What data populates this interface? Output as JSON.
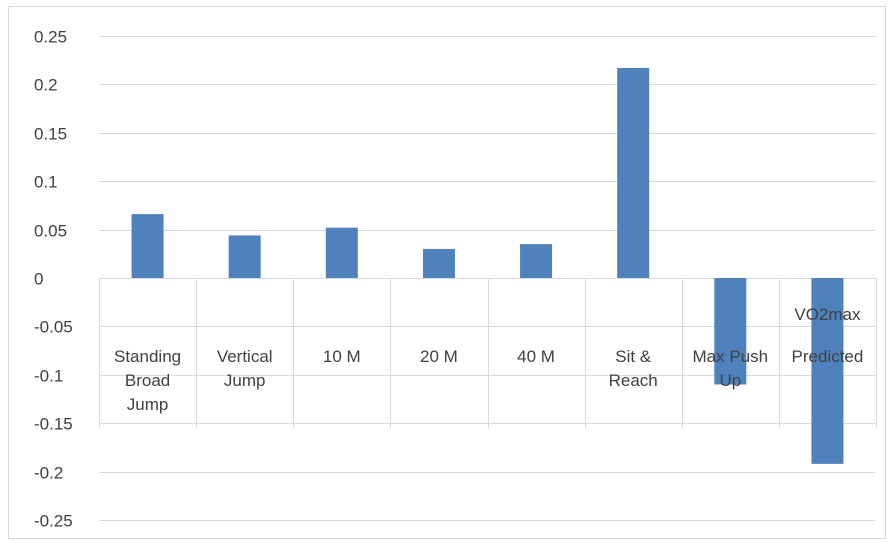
{
  "chart_data": {
    "type": "bar",
    "title": "",
    "xlabel": "",
    "ylabel": "",
    "categories": [
      [
        "Standing",
        "Broad",
        "Jump"
      ],
      [
        "Vertical",
        "Jump"
      ],
      [
        "10 M"
      ],
      [
        "20 M"
      ],
      [
        "40 M"
      ],
      [
        "Sit &",
        "Reach"
      ],
      [
        "Max Push",
        "Up"
      ],
      [
        "VO2max",
        "Predicted"
      ]
    ],
    "values": [
      0.066,
      0.044,
      0.052,
      0.03,
      0.035,
      0.217,
      -0.11,
      -0.192
    ],
    "ylim": [
      -0.25,
      0.25
    ],
    "yticks": [
      "0.25",
      "0.2",
      "0.15",
      "0.1",
      "0.05",
      "0",
      "-0.05",
      "-0.1",
      "-0.15",
      "-0.2",
      "-0.25"
    ],
    "grid": true,
    "legend": "none",
    "bar_color": "#4f81bd",
    "grid_color": "#d9d9d9"
  }
}
